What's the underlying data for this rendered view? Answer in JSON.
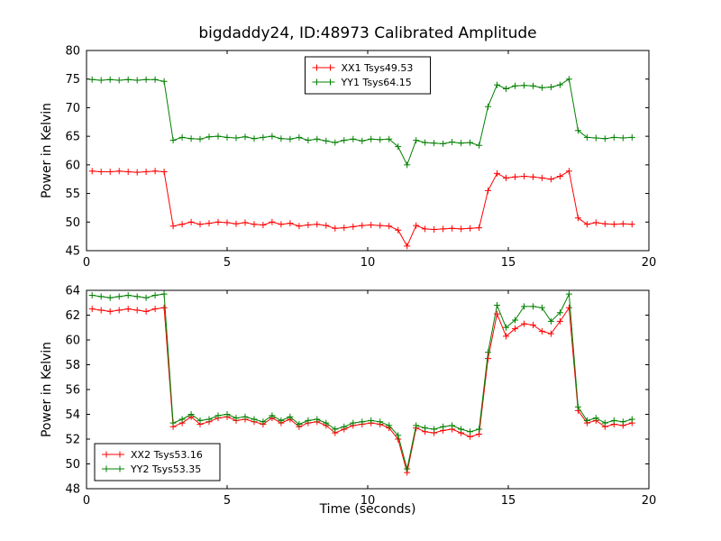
{
  "figure": {
    "background": "#ffffff",
    "line_colors": {
      "xx": "#ff0000",
      "yy": "#008000"
    }
  },
  "chart_data": [
    {
      "type": "line",
      "title": "bigdaddy24, ID:48973 Calibrated Amplitude",
      "xlabel": "",
      "ylabel": "Power in Kelvin",
      "xlim": [
        0,
        20
      ],
      "ylim": [
        45,
        80
      ],
      "xticks": [
        0,
        5,
        10,
        15,
        20
      ],
      "yticks": [
        45,
        50,
        55,
        60,
        65,
        70,
        75,
        80
      ],
      "grid": false,
      "legend_loc": "upper center",
      "x": [
        0.2,
        0.52,
        0.84,
        1.16,
        1.48,
        1.8,
        2.12,
        2.44,
        2.76,
        3.08,
        3.4,
        3.72,
        4.04,
        4.36,
        4.68,
        5.0,
        5.32,
        5.64,
        5.96,
        6.28,
        6.6,
        6.92,
        7.24,
        7.56,
        7.88,
        8.2,
        8.52,
        8.84,
        9.16,
        9.48,
        9.8,
        10.12,
        10.44,
        10.76,
        11.08,
        11.4,
        11.72,
        12.04,
        12.36,
        12.68,
        13.0,
        13.32,
        13.64,
        13.96,
        14.28,
        14.6,
        14.92,
        15.24,
        15.56,
        15.88,
        16.2,
        16.52,
        16.84,
        17.16,
        17.48,
        17.8,
        18.12,
        18.44,
        18.76,
        19.08,
        19.4
      ],
      "series": [
        {
          "name": "XX1 Tsys49.53",
          "color": "#ff0000",
          "marker": "plus",
          "values": [
            58.9,
            58.8,
            58.8,
            58.9,
            58.8,
            58.7,
            58.8,
            58.9,
            58.8,
            49.3,
            49.6,
            50.0,
            49.6,
            49.8,
            50.0,
            49.9,
            49.7,
            49.9,
            49.6,
            49.5,
            50.0,
            49.6,
            49.8,
            49.3,
            49.5,
            49.6,
            49.4,
            48.9,
            49.0,
            49.2,
            49.4,
            49.5,
            49.4,
            49.3,
            48.6,
            45.8,
            49.4,
            48.8,
            48.7,
            48.8,
            48.9,
            48.8,
            48.9,
            49.0,
            55.5,
            58.5,
            57.7,
            57.9,
            58.0,
            57.9,
            57.7,
            57.5,
            58.0,
            58.9,
            50.7,
            49.6,
            49.9,
            49.7,
            49.6,
            49.7,
            49.6
          ]
        },
        {
          "name": "YY1 Tsys64.15",
          "color": "#008000",
          "marker": "plus",
          "values": [
            74.9,
            74.8,
            74.9,
            74.8,
            74.9,
            74.8,
            74.9,
            74.9,
            74.6,
            64.3,
            64.8,
            64.6,
            64.5,
            64.9,
            65.0,
            64.8,
            64.7,
            64.9,
            64.6,
            64.8,
            65.0,
            64.6,
            64.5,
            64.8,
            64.3,
            64.5,
            64.2,
            63.9,
            64.3,
            64.5,
            64.2,
            64.5,
            64.4,
            64.5,
            63.2,
            60.0,
            64.3,
            63.9,
            63.8,
            63.7,
            64.0,
            63.8,
            63.9,
            63.4,
            70.2,
            74.0,
            73.3,
            73.8,
            73.9,
            73.8,
            73.5,
            73.6,
            74.0,
            75.0,
            66.0,
            64.8,
            64.7,
            64.6,
            64.8,
            64.7,
            64.8
          ]
        }
      ]
    },
    {
      "type": "line",
      "title": "",
      "xlabel": "Time (seconds)",
      "ylabel": "Power in Kelvin",
      "xlim": [
        0,
        20
      ],
      "ylim": [
        48,
        64
      ],
      "xticks": [
        0,
        5,
        10,
        15,
        20
      ],
      "yticks": [
        48,
        50,
        52,
        54,
        56,
        58,
        60,
        62,
        64
      ],
      "grid": false,
      "legend_loc": "lower left",
      "x": [
        0.2,
        0.52,
        0.84,
        1.16,
        1.48,
        1.8,
        2.12,
        2.44,
        2.76,
        3.08,
        3.4,
        3.72,
        4.04,
        4.36,
        4.68,
        5.0,
        5.32,
        5.64,
        5.96,
        6.28,
        6.6,
        6.92,
        7.24,
        7.56,
        7.88,
        8.2,
        8.52,
        8.84,
        9.16,
        9.48,
        9.8,
        10.12,
        10.44,
        10.76,
        11.08,
        11.4,
        11.72,
        12.04,
        12.36,
        12.68,
        13.0,
        13.32,
        13.64,
        13.96,
        14.28,
        14.6,
        14.92,
        15.24,
        15.56,
        15.88,
        16.2,
        16.52,
        16.84,
        17.16,
        17.48,
        17.8,
        18.12,
        18.44,
        18.76,
        19.08,
        19.4
      ],
      "series": [
        {
          "name": "XX2 Tsys53.16",
          "color": "#ff0000",
          "marker": "plus",
          "values": [
            62.5,
            62.4,
            62.3,
            62.4,
            62.5,
            62.4,
            62.3,
            62.5,
            62.6,
            53.0,
            53.3,
            53.8,
            53.2,
            53.4,
            53.7,
            53.8,
            53.5,
            53.6,
            53.4,
            53.2,
            53.7,
            53.3,
            53.6,
            53.0,
            53.3,
            53.4,
            53.1,
            52.5,
            52.8,
            53.1,
            53.2,
            53.3,
            53.2,
            52.9,
            52.0,
            49.3,
            52.9,
            52.6,
            52.5,
            52.7,
            52.8,
            52.5,
            52.2,
            52.4,
            58.5,
            62.1,
            60.3,
            60.9,
            61.3,
            61.2,
            60.7,
            60.5,
            61.5,
            62.6,
            54.3,
            53.3,
            53.5,
            53.0,
            53.2,
            53.1,
            53.3
          ]
        },
        {
          "name": "YY2 Tsys53.35",
          "color": "#008000",
          "marker": "plus",
          "values": [
            63.6,
            63.5,
            63.4,
            63.5,
            63.6,
            63.5,
            63.4,
            63.6,
            63.7,
            53.3,
            53.6,
            54.0,
            53.5,
            53.6,
            53.9,
            54.0,
            53.7,
            53.8,
            53.6,
            53.4,
            53.9,
            53.5,
            53.8,
            53.2,
            53.5,
            53.6,
            53.3,
            52.8,
            53.0,
            53.3,
            53.4,
            53.5,
            53.4,
            53.1,
            52.3,
            49.6,
            53.1,
            52.9,
            52.8,
            53.0,
            53.1,
            52.8,
            52.6,
            52.8,
            59.0,
            62.8,
            61.0,
            61.6,
            62.7,
            62.7,
            62.6,
            61.5,
            62.2,
            63.7,
            54.6,
            53.5,
            53.7,
            53.3,
            53.5,
            53.4,
            53.6
          ]
        }
      ]
    }
  ]
}
